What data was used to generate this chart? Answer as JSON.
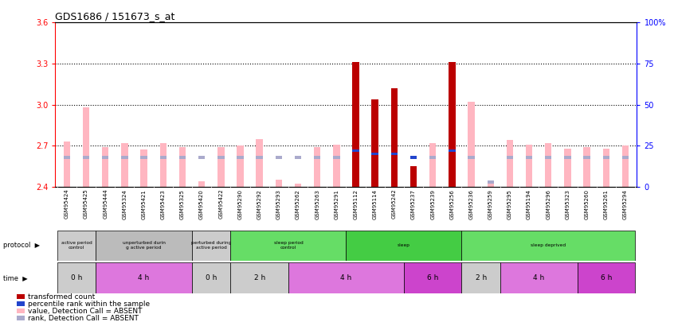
{
  "title": "GDS1686 / 151673_s_at",
  "samples": [
    "GSM95424",
    "GSM95425",
    "GSM95444",
    "GSM95324",
    "GSM95421",
    "GSM95423",
    "GSM95325",
    "GSM95420",
    "GSM95422",
    "GSM95290",
    "GSM95292",
    "GSM95293",
    "GSM95262",
    "GSM95263",
    "GSM95291",
    "GSM95112",
    "GSM95114",
    "GSM95242",
    "GSM95237",
    "GSM95239",
    "GSM95256",
    "GSM95236",
    "GSM95259",
    "GSM95295",
    "GSM95194",
    "GSM95296",
    "GSM95323",
    "GSM95260",
    "GSM95261",
    "GSM95294"
  ],
  "value_height": [
    2.73,
    2.98,
    2.69,
    2.72,
    2.67,
    2.72,
    2.69,
    2.44,
    2.69,
    2.7,
    2.75,
    2.45,
    2.42,
    2.69,
    2.71,
    3.31,
    3.04,
    3.12,
    2.55,
    2.72,
    3.31,
    3.02,
    2.44,
    2.74,
    2.71,
    2.72,
    2.68,
    2.69,
    2.68,
    2.7
  ],
  "rank_pct": [
    18,
    18,
    18,
    18,
    18,
    18,
    18,
    18,
    18,
    18,
    18,
    18,
    18,
    18,
    18,
    22,
    20,
    20,
    18,
    18,
    22,
    18,
    3,
    18,
    18,
    18,
    18,
    18,
    18,
    18
  ],
  "is_present": [
    false,
    false,
    false,
    false,
    false,
    false,
    false,
    false,
    false,
    false,
    false,
    false,
    false,
    false,
    false,
    true,
    true,
    true,
    true,
    false,
    true,
    false,
    false,
    false,
    false,
    false,
    false,
    false,
    false,
    false
  ],
  "ylim_left": [
    2.4,
    3.6
  ],
  "ylim_right": [
    0,
    100
  ],
  "yticks_left": [
    2.4,
    2.7,
    3.0,
    3.3,
    3.6
  ],
  "yticks_right": [
    0,
    25,
    50,
    75,
    100
  ],
  "ytick_right_labels": [
    "0",
    "25",
    "50",
    "75",
    "100%"
  ],
  "color_bar_absent": "#FFB6C1",
  "color_bar_present": "#BB0000",
  "color_rank_absent": "#AAAACC",
  "color_rank_present": "#2244CC",
  "bg_color": "#FFFFFF",
  "protocol_groups": [
    {
      "label": "active period\ncontrol",
      "start": 0,
      "end": 2,
      "color": "#CCCCCC"
    },
    {
      "label": "unperturbed durin\ng active period",
      "start": 2,
      "end": 7,
      "color": "#BBBBBB"
    },
    {
      "label": "perturbed during\nactive period",
      "start": 7,
      "end": 9,
      "color": "#CCCCCC"
    },
    {
      "label": "sleep period\ncontrol",
      "start": 9,
      "end": 15,
      "color": "#66DD66"
    },
    {
      "label": "sleep",
      "start": 15,
      "end": 21,
      "color": "#44CC44"
    },
    {
      "label": "sleep deprived",
      "start": 21,
      "end": 30,
      "color": "#66DD66"
    }
  ],
  "time_groups": [
    {
      "label": "0 h",
      "start": 0,
      "end": 2,
      "color": "#CCCCCC"
    },
    {
      "label": "4 h",
      "start": 2,
      "end": 7,
      "color": "#DD77DD"
    },
    {
      "label": "0 h",
      "start": 7,
      "end": 9,
      "color": "#CCCCCC"
    },
    {
      "label": "2 h",
      "start": 9,
      "end": 12,
      "color": "#CCCCCC"
    },
    {
      "label": "4 h",
      "start": 12,
      "end": 18,
      "color": "#DD77DD"
    },
    {
      "label": "6 h",
      "start": 18,
      "end": 21,
      "color": "#CC44CC"
    },
    {
      "label": "2 h",
      "start": 21,
      "end": 23,
      "color": "#CCCCCC"
    },
    {
      "label": "4 h",
      "start": 23,
      "end": 27,
      "color": "#DD77DD"
    },
    {
      "label": "6 h",
      "start": 27,
      "end": 30,
      "color": "#CC44CC"
    }
  ],
  "legend_items": [
    {
      "color": "#BB0000",
      "label": "transformed count"
    },
    {
      "color": "#2244CC",
      "label": "percentile rank within the sample"
    },
    {
      "color": "#FFB6C1",
      "label": "value, Detection Call = ABSENT"
    },
    {
      "color": "#AAAACC",
      "label": "rank, Detection Call = ABSENT"
    }
  ]
}
